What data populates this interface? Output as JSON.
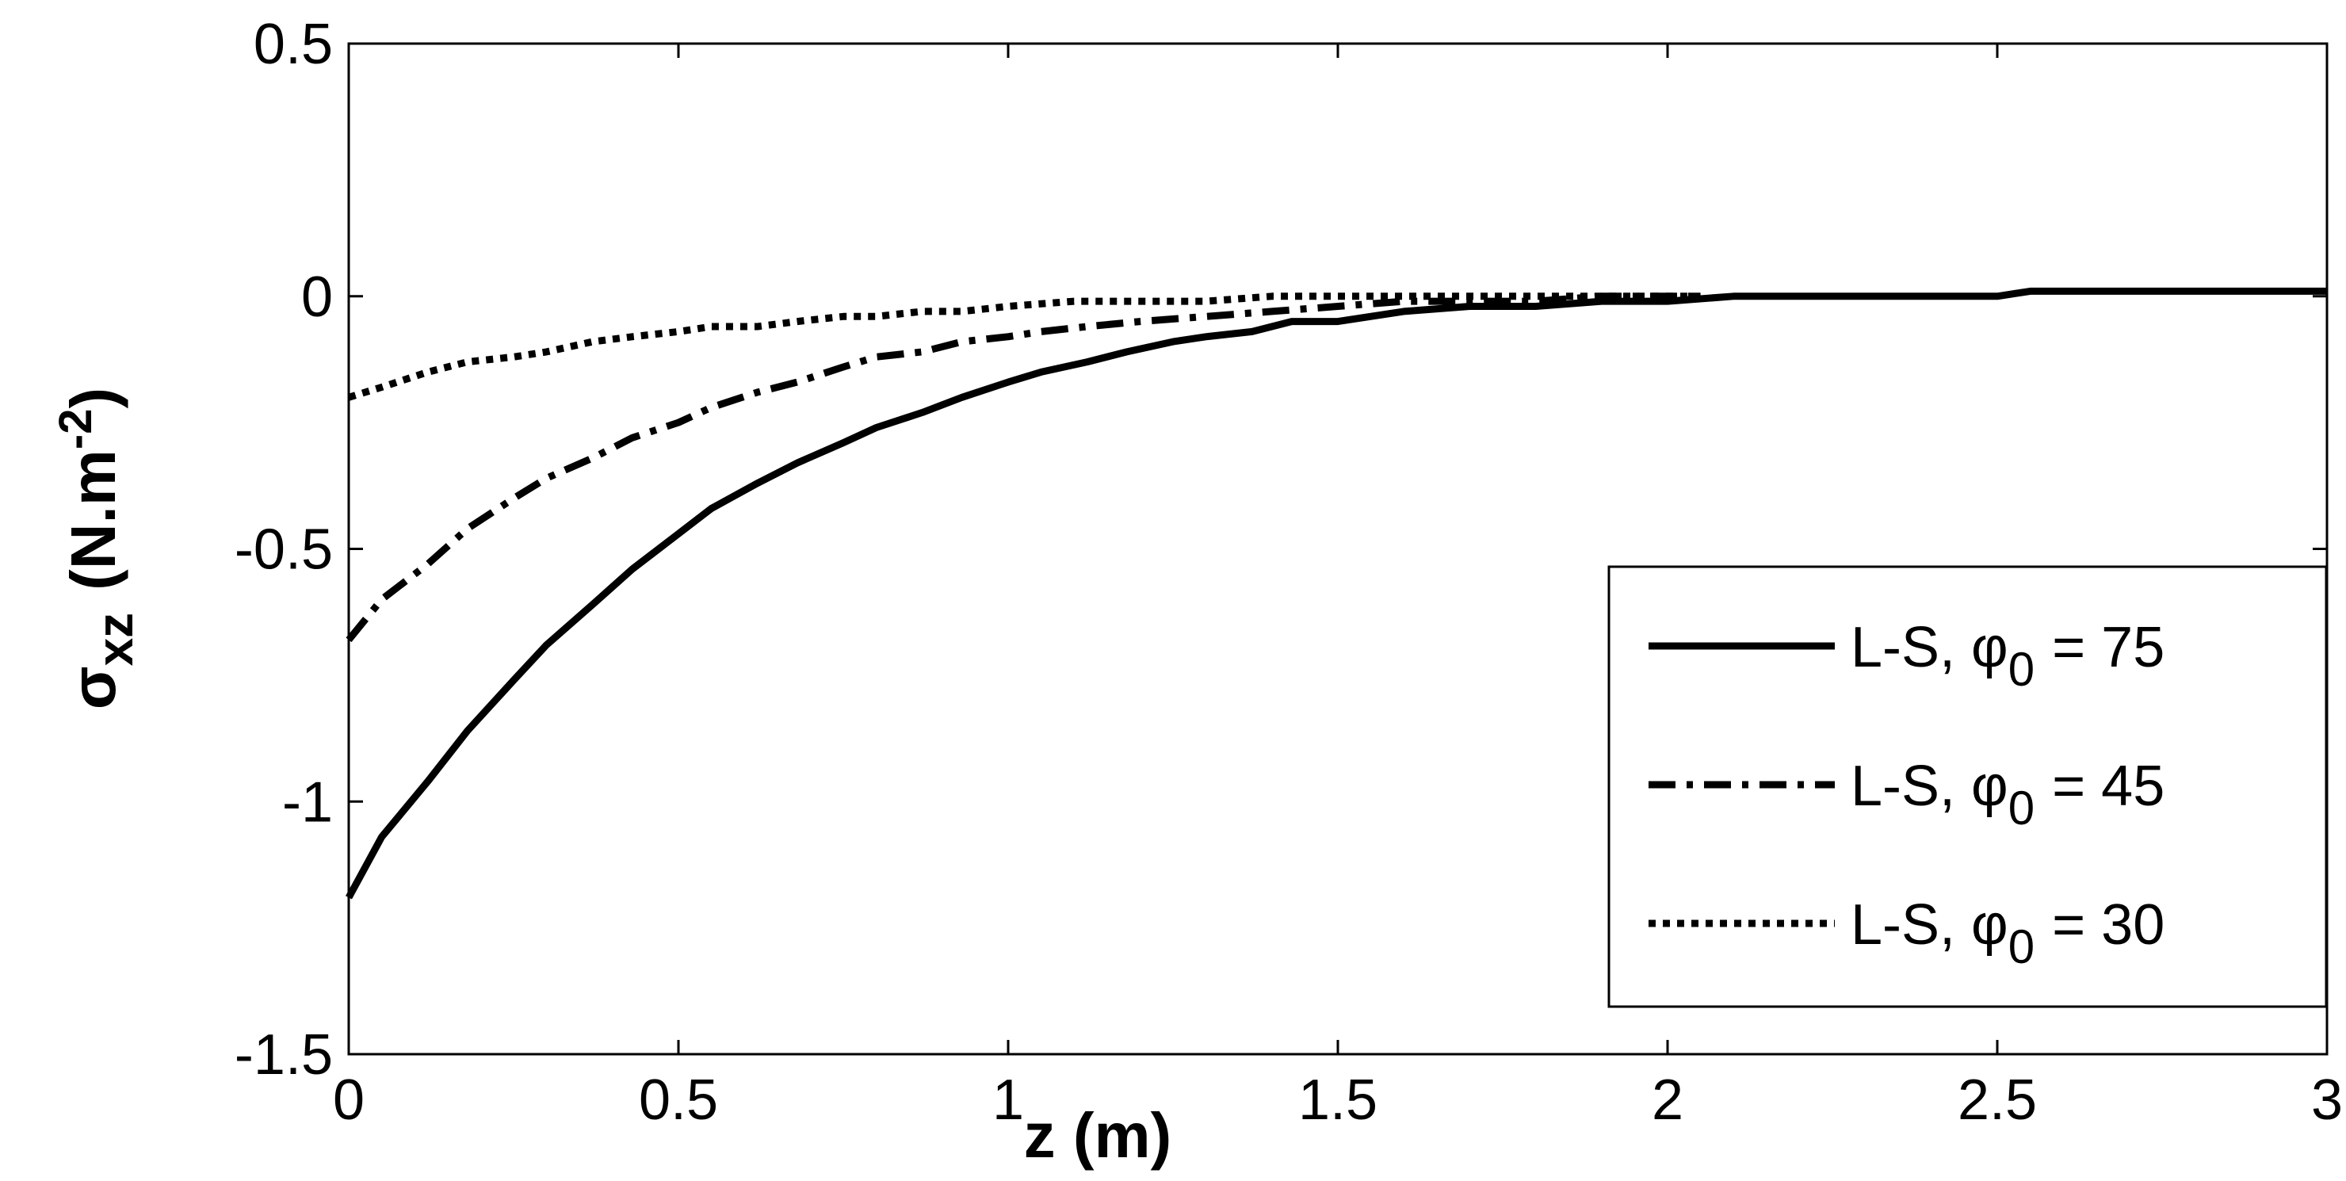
{
  "chart_data": {
    "type": "line",
    "xlabel": "z (m)",
    "ylabel": {
      "symbol": "σ",
      "subscript": "xz",
      "unit_pre": "(N.m",
      "unit_sup": "-2",
      "unit_post": ")"
    },
    "xlim": [
      0,
      3
    ],
    "ylim": [
      -1.5,
      0.5
    ],
    "x_ticks": [
      0,
      0.5,
      1,
      1.5,
      2,
      2.5,
      3
    ],
    "y_ticks": [
      0.5,
      0,
      -0.5,
      -1,
      -1.5
    ],
    "x_tick_labels": [
      "0",
      "0.5",
      "1",
      "1.5",
      "2",
      "2.5",
      "3"
    ],
    "y_tick_labels": [
      "0.5",
      "0",
      "-0.5",
      "-1",
      "-1.5"
    ],
    "grid": false,
    "legend_position": "lower-right",
    "series": [
      {
        "name": "L-S, φ0 = 75",
        "label_text": "L-S, φ",
        "label_sub": "0",
        "label_value": "= 75",
        "style": "solid",
        "x": [
          0,
          0.05,
          0.12,
          0.18,
          0.25,
          0.3,
          0.37,
          0.43,
          0.5,
          0.55,
          0.62,
          0.68,
          0.75,
          0.8,
          0.87,
          0.93,
          1.0,
          1.05,
          1.12,
          1.18,
          1.25,
          1.3,
          1.37,
          1.43,
          1.5,
          1.6,
          1.7,
          1.8,
          1.9,
          2.0,
          2.1,
          2.2,
          2.3,
          2.4,
          2.5,
          2.55,
          2.6,
          2.7,
          2.8,
          2.9,
          3.0
        ],
        "y": [
          -1.19,
          -1.07,
          -0.96,
          -0.86,
          -0.76,
          -0.69,
          -0.61,
          -0.54,
          -0.47,
          -0.42,
          -0.37,
          -0.33,
          -0.29,
          -0.26,
          -0.23,
          -0.2,
          -0.17,
          -0.15,
          -0.13,
          -0.11,
          -0.09,
          -0.08,
          -0.07,
          -0.05,
          -0.05,
          -0.03,
          -0.02,
          -0.02,
          -0.01,
          -0.01,
          0.0,
          0.0,
          0.0,
          0.0,
          0.0,
          0.01,
          0.01,
          0.01,
          0.01,
          0.01,
          0.01
        ]
      },
      {
        "name": "L-S, φ0 = 45",
        "label_text": "L-S, φ",
        "label_sub": "0",
        "label_value": "= 45",
        "style": "dashdot",
        "x": [
          0,
          0.05,
          0.12,
          0.18,
          0.25,
          0.3,
          0.37,
          0.43,
          0.5,
          0.55,
          0.62,
          0.68,
          0.75,
          0.8,
          0.87,
          0.93,
          1.0,
          1.05,
          1.12,
          1.2,
          1.3,
          1.4,
          1.5,
          1.6,
          1.7,
          1.8,
          1.9,
          2.0,
          2.05
        ],
        "y": [
          -0.68,
          -0.6,
          -0.53,
          -0.46,
          -0.4,
          -0.36,
          -0.32,
          -0.28,
          -0.25,
          -0.22,
          -0.19,
          -0.17,
          -0.14,
          -0.12,
          -0.11,
          -0.09,
          -0.08,
          -0.07,
          -0.06,
          -0.05,
          -0.04,
          -0.03,
          -0.02,
          -0.01,
          -0.01,
          -0.01,
          0.0,
          0.0,
          0.0
        ]
      },
      {
        "name": "L-S, φ0 = 30",
        "label_text": "L-S, φ",
        "label_sub": "0",
        "label_value": "= 30",
        "style": "dotted",
        "x": [
          0,
          0.05,
          0.12,
          0.18,
          0.25,
          0.3,
          0.37,
          0.43,
          0.5,
          0.55,
          0.62,
          0.68,
          0.75,
          0.8,
          0.87,
          0.93,
          1.0,
          1.1,
          1.2,
          1.3,
          1.4,
          1.5,
          1.6,
          1.7,
          1.8,
          1.9,
          2.0,
          2.05
        ],
        "y": [
          -0.2,
          -0.18,
          -0.15,
          -0.13,
          -0.12,
          -0.11,
          -0.09,
          -0.08,
          -0.07,
          -0.06,
          -0.06,
          -0.05,
          -0.04,
          -0.04,
          -0.03,
          -0.03,
          -0.02,
          -0.01,
          -0.01,
          -0.01,
          0.0,
          0.0,
          0.0,
          0.0,
          0.0,
          0.0,
          0.0,
          0.0
        ]
      }
    ]
  }
}
